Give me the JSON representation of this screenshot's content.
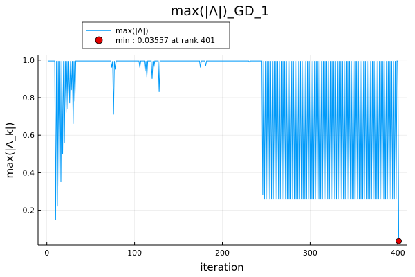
{
  "chart_data": {
    "type": "line",
    "title": "max(|Λ|)_GD_1",
    "xlabel": "iteration",
    "ylabel": "max(|Λ_k|)",
    "xlim": [
      -10,
      410
    ],
    "ylim": [
      0.014,
      1.025
    ],
    "xticks": [
      0,
      100,
      200,
      300,
      400
    ],
    "yticks": [
      0.2,
      0.4,
      0.6,
      0.8,
      1.0
    ],
    "xtick_labels": [
      "0",
      "100",
      "200",
      "300",
      "400"
    ],
    "ytick_labels": [
      "0.2",
      "0.4",
      "0.6",
      "0.8",
      "1.0"
    ],
    "grid": true,
    "legend_position": "top-left-outside",
    "series": [
      {
        "name": "max(|Λ|)",
        "color": "#009af9",
        "dips": [
          [
            10,
            0.15
          ],
          [
            12,
            0.22
          ],
          [
            14,
            0.33
          ],
          [
            16,
            0.35
          ],
          [
            18,
            0.5
          ],
          [
            20,
            0.56
          ],
          [
            22,
            0.72
          ],
          [
            24,
            0.74
          ],
          [
            26,
            0.77
          ],
          [
            28,
            0.84
          ],
          [
            30,
            0.66
          ],
          [
            32,
            0.78
          ],
          [
            74,
            0.96
          ],
          [
            76,
            0.71
          ],
          [
            78,
            0.95
          ],
          [
            106,
            0.96
          ],
          [
            112,
            0.94
          ],
          [
            114,
            0.91
          ],
          [
            120,
            0.9
          ],
          [
            122,
            0.96
          ],
          [
            128,
            0.83
          ],
          [
            175,
            0.96
          ],
          [
            181,
            0.97
          ],
          [
            231,
            0.99
          ]
        ],
        "oscillation": {
          "start": 246,
          "end": 399,
          "first_low": 0.28,
          "low": 0.257,
          "high": 0.995
        },
        "baseline": 0.995,
        "last": [
          401,
          0.0356
        ]
      },
      {
        "name": "min : 0.03557 at rank 401",
        "type": "scatter",
        "color": "#e20000",
        "x": [
          401
        ],
        "y": [
          0.03557
        ]
      }
    ]
  }
}
